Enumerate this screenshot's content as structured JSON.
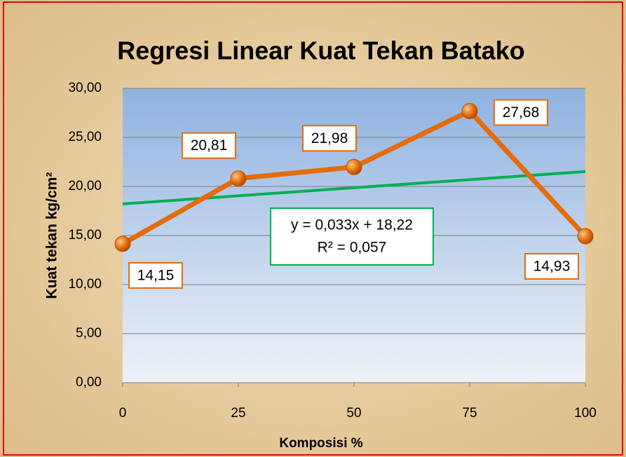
{
  "chart_data": {
    "type": "line",
    "title": "Regresi Linear Kuat Tekan Batako",
    "x_label": "Komposisi %",
    "y_label": "Kuat tekan kg/cm²",
    "x": [
      0,
      25,
      50,
      75,
      100
    ],
    "series": [
      {
        "color": "#e46c0a",
        "values": [
          14.15,
          20.81,
          21.98,
          27.68,
          14.93
        ],
        "value_labels": [
          "14,15",
          "20,81",
          "21,98",
          "27,68",
          "14,93"
        ]
      }
    ],
    "trendline": {
      "color": "#00b050",
      "slope": 0.033,
      "intercept": 18.22,
      "equation": "y = 0,033x + 18,22",
      "r_squared": "R² = 0,057"
    },
    "xlim": [
      0,
      100
    ],
    "xticks": [
      0,
      25,
      50,
      75,
      100
    ],
    "ylim": [
      0,
      30
    ],
    "yticks": [
      {
        "value": 0,
        "label": "0,00"
      },
      {
        "value": 5,
        "label": "5,00"
      },
      {
        "value": 10,
        "label": "10,00"
      },
      {
        "value": 15,
        "label": "15,00"
      },
      {
        "value": 20,
        "label": "20,00"
      },
      {
        "value": 25,
        "label": "25,00"
      },
      {
        "value": 30,
        "label": "30,00"
      }
    ],
    "grid": true
  }
}
